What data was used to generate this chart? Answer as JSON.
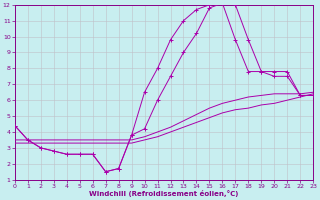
{
  "xlabel": "Windchill (Refroidissement éolien,°C)",
  "xlim": [
    0,
    23
  ],
  "ylim": [
    1,
    12
  ],
  "bg_color": "#c8eef0",
  "line_color": "#aa00aa",
  "grid_color": "#c0c0c8",
  "curve1_x": [
    0,
    1,
    2,
    3,
    4,
    5,
    6,
    7,
    8,
    9,
    10,
    11,
    12,
    13,
    14,
    15,
    16,
    17,
    18,
    19,
    20,
    21,
    22,
    23
  ],
  "curve1_y": [
    4.4,
    3.5,
    3.0,
    2.8,
    2.6,
    2.6,
    2.6,
    1.5,
    1.7,
    3.8,
    6.5,
    8.0,
    9.8,
    11.0,
    11.7,
    12.0,
    12.1,
    12.0,
    9.8,
    7.8,
    7.8,
    7.8,
    6.3,
    6.3
  ],
  "curve2_x": [
    0,
    1,
    2,
    3,
    4,
    5,
    6,
    7,
    8,
    9,
    10,
    11,
    12,
    13,
    14,
    15,
    16,
    17,
    18,
    19,
    20,
    21,
    22,
    23
  ],
  "curve2_y": [
    4.4,
    3.5,
    3.0,
    2.8,
    2.6,
    2.6,
    2.6,
    1.5,
    1.7,
    3.8,
    4.2,
    6.0,
    7.5,
    9.0,
    10.2,
    11.8,
    12.1,
    9.8,
    7.8,
    7.8,
    7.5,
    7.5,
    6.3,
    6.3
  ],
  "curve3_x": [
    0,
    9,
    10,
    11,
    12,
    13,
    14,
    15,
    16,
    17,
    18,
    19,
    20,
    21,
    22,
    23
  ],
  "curve3_y": [
    3.5,
    3.5,
    3.7,
    4.0,
    4.3,
    4.7,
    5.1,
    5.5,
    5.8,
    6.0,
    6.2,
    6.3,
    6.4,
    6.4,
    6.4,
    6.5
  ],
  "curve4_x": [
    0,
    9,
    10,
    11,
    12,
    13,
    14,
    15,
    16,
    17,
    18,
    19,
    20,
    21,
    22,
    23
  ],
  "curve4_y": [
    3.3,
    3.3,
    3.5,
    3.7,
    4.0,
    4.3,
    4.6,
    4.9,
    5.2,
    5.4,
    5.5,
    5.7,
    5.8,
    6.0,
    6.2,
    6.4
  ]
}
